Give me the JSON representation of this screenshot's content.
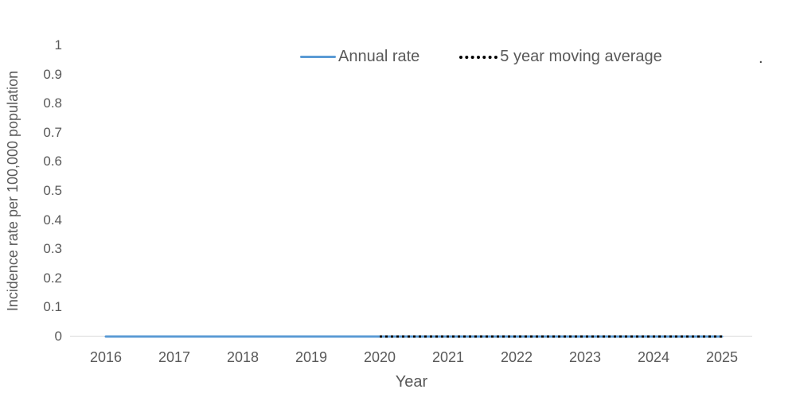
{
  "chart_data": {
    "type": "line",
    "x": [
      2016,
      2017,
      2018,
      2019,
      2020,
      2021,
      2022,
      2023,
      2024,
      2025
    ],
    "series": [
      {
        "name": "Annual rate",
        "color": "#5b9bd5",
        "line_style": "solid",
        "x_start": 2016,
        "x_end": 2025,
        "values": [
          0,
          0,
          0,
          0,
          0,
          0,
          0,
          0,
          0,
          0
        ]
      },
      {
        "name": "5 year moving average",
        "color": "#000000",
        "line_style": "dotted",
        "x_start": 2020,
        "x_end": 2025,
        "values": [
          0,
          0,
          0,
          0,
          0,
          0
        ]
      }
    ],
    "title": "",
    "xlabel": "Year",
    "ylabel": "Incidence rate per 100,000 population",
    "ylim": [
      0,
      1
    ],
    "yticks": [
      0,
      0.1,
      0.2,
      0.3,
      0.4,
      0.5,
      0.6,
      0.7,
      0.8,
      0.9,
      1
    ],
    "grid": false,
    "legend_position": "top"
  },
  "annotations": {
    "stray_dot": "."
  },
  "colors": {
    "axis_line": "#d9d9d9",
    "text": "#595959",
    "annual_rate_line": "#5b9bd5",
    "moving_average_line": "#000000"
  }
}
